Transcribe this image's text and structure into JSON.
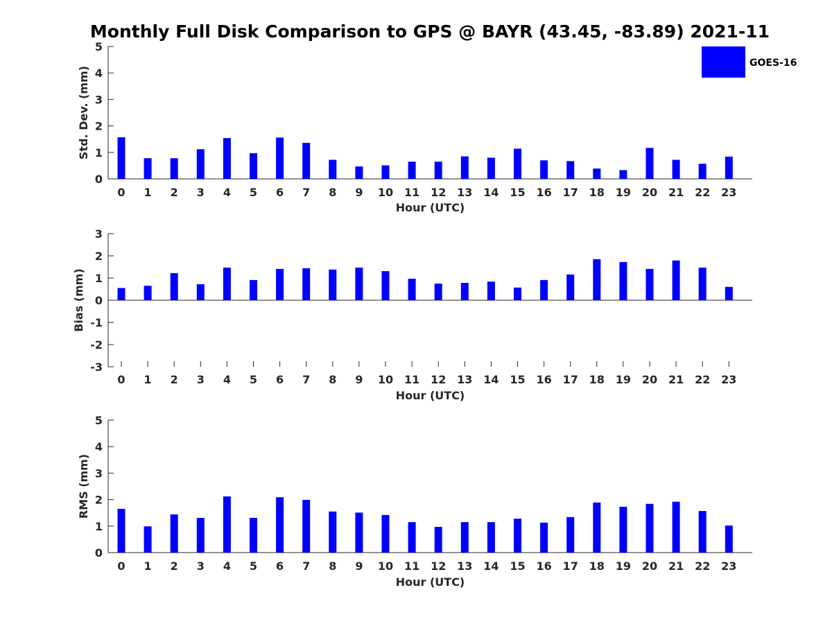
{
  "title": "Monthly Full Disk Comparison to GPS @ BAYR (43.45, -83.89) 2021-11",
  "legend": {
    "label": "GOES-16",
    "color": "#0000ff",
    "position": "top-right"
  },
  "chart_data": [
    {
      "type": "bar",
      "categories": [
        "0",
        "1",
        "2",
        "3",
        "4",
        "5",
        "6",
        "7",
        "8",
        "9",
        "10",
        "11",
        "12",
        "13",
        "14",
        "15",
        "16",
        "17",
        "18",
        "19",
        "20",
        "21",
        "22",
        "23"
      ],
      "series": [
        {
          "name": "GOES-16",
          "color": "#0000ff",
          "values": [
            1.57,
            0.78,
            0.78,
            1.12,
            1.54,
            0.97,
            1.56,
            1.36,
            0.72,
            0.47,
            0.51,
            0.65,
            0.65,
            0.85,
            0.8,
            1.14,
            0.7,
            0.67,
            0.39,
            0.33,
            1.17,
            0.72,
            0.57,
            0.84
          ]
        }
      ],
      "xlabel": "Hour (UTC)",
      "ylabel": "Std. Dev. (mm)",
      "ylim": [
        0,
        5
      ],
      "yticks": [
        "0",
        "1",
        "2",
        "3",
        "4",
        "5"
      ],
      "grid": false
    },
    {
      "type": "bar",
      "categories": [
        "0",
        "1",
        "2",
        "3",
        "4",
        "5",
        "6",
        "7",
        "8",
        "9",
        "10",
        "11",
        "12",
        "13",
        "14",
        "15",
        "16",
        "17",
        "18",
        "19",
        "20",
        "21",
        "22",
        "23"
      ],
      "series": [
        {
          "name": "GOES-16",
          "color": "#0000ff",
          "values": [
            0.55,
            0.65,
            1.22,
            0.72,
            1.47,
            0.91,
            1.41,
            1.44,
            1.38,
            1.47,
            1.31,
            0.97,
            0.75,
            0.78,
            0.84,
            0.57,
            0.91,
            1.16,
            1.85,
            1.72,
            1.41,
            1.79,
            1.47,
            0.6
          ]
        }
      ],
      "xlabel": "Hour (UTC)",
      "ylabel": "Bias (mm)",
      "ylim": [
        -3,
        3
      ],
      "yticks": [
        "-3",
        "-2",
        "-1",
        "0",
        "1",
        "2",
        "3"
      ],
      "grid": false
    },
    {
      "type": "bar",
      "categories": [
        "0",
        "1",
        "2",
        "3",
        "4",
        "5",
        "6",
        "7",
        "8",
        "9",
        "10",
        "11",
        "12",
        "13",
        "14",
        "15",
        "16",
        "17",
        "18",
        "19",
        "20",
        "21",
        "22",
        "23"
      ],
      "series": [
        {
          "name": "GOES-16",
          "color": "#0000ff",
          "values": [
            1.65,
            0.99,
            1.44,
            1.31,
            2.12,
            1.31,
            2.09,
            1.99,
            1.55,
            1.51,
            1.42,
            1.15,
            0.97,
            1.15,
            1.15,
            1.28,
            1.13,
            1.34,
            1.89,
            1.73,
            1.84,
            1.92,
            1.57,
            1.02
          ]
        }
      ],
      "xlabel": "Hour (UTC)",
      "ylabel": "RMS (mm)",
      "ylim": [
        0,
        5
      ],
      "yticks": [
        "0",
        "1",
        "2",
        "3",
        "4",
        "5"
      ],
      "grid": false
    }
  ]
}
